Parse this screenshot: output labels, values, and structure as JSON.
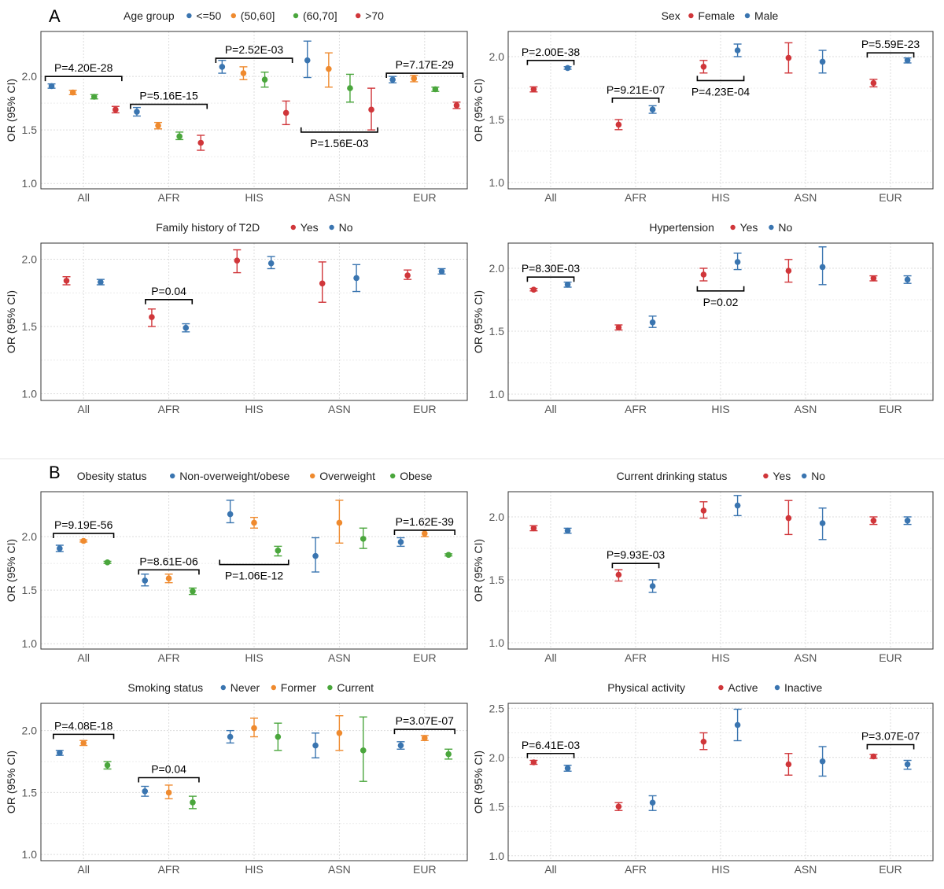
{
  "labels": {
    "A": "A",
    "B": "B"
  },
  "colors": {
    "blue": "#3a75b0",
    "orange": "#ef8a2e",
    "green": "#4aa63c",
    "red": "#d0363a"
  },
  "chart_data": [
    {
      "id": "age",
      "type": "scatter",
      "title": "Age group",
      "ylabel": "OR (95% CI)",
      "categories": [
        "All",
        "AFR",
        "HIS",
        "ASN",
        "EUR"
      ],
      "ylim": [
        0.95,
        2.42
      ],
      "yticks": [
        1.0,
        1.5,
        2.0
      ],
      "series": [
        {
          "name": "<=50",
          "color": "#3a75b0",
          "values": [
            [
              1.91,
              1.89,
              1.93
            ],
            [
              1.67,
              1.63,
              1.71
            ],
            [
              2.09,
              2.03,
              2.15
            ],
            [
              2.15,
              1.99,
              2.33
            ],
            [
              1.97,
              1.94,
              2.0
            ]
          ]
        },
        {
          "name": "(50,60]",
          "color": "#ef8a2e",
          "values": [
            [
              1.85,
              1.83,
              1.87
            ],
            [
              1.54,
              1.51,
              1.57
            ],
            [
              2.03,
              1.97,
              2.09
            ],
            [
              2.07,
              1.9,
              2.22
            ],
            [
              1.98,
              1.95,
              2.01
            ]
          ]
        },
        {
          "name": "(60,70]",
          "color": "#4aa63c",
          "values": [
            [
              1.81,
              1.79,
              1.83
            ],
            [
              1.44,
              1.41,
              1.48
            ],
            [
              1.97,
              1.9,
              2.04
            ],
            [
              1.89,
              1.76,
              2.02
            ],
            [
              1.88,
              1.86,
              1.9
            ]
          ]
        },
        {
          "name": ">70",
          "color": "#d0363a",
          "values": [
            [
              1.69,
              1.66,
              1.72
            ],
            [
              1.38,
              1.31,
              1.45
            ],
            [
              1.66,
              1.55,
              1.77
            ],
            [
              1.69,
              1.5,
              1.89
            ],
            [
              1.73,
              1.7,
              1.76
            ]
          ]
        }
      ],
      "brackets": [
        {
          "cat": 0,
          "span": [
            -0.375,
            0.375
          ],
          "y": 2.0,
          "dir": "down",
          "label": "P=4.20E-28"
        },
        {
          "cat": 1,
          "span": [
            -0.375,
            0.375
          ],
          "y": 1.74,
          "dir": "down",
          "label": "P=5.16E-15"
        },
        {
          "cat": 2,
          "span": [
            -0.375,
            0.375
          ],
          "y": 2.17,
          "dir": "down",
          "label": "P=2.52E-03"
        },
        {
          "cat": 3,
          "span": [
            -0.375,
            0.375
          ],
          "y": 1.48,
          "dir": "up",
          "label": "P=1.56E-03"
        },
        {
          "cat": 4,
          "span": [
            -0.375,
            0.375
          ],
          "y": 2.03,
          "dir": "down",
          "label": "P=7.17E-29"
        }
      ]
    },
    {
      "id": "sex",
      "type": "scatter",
      "title": "Sex",
      "ylabel": "OR (95% CI)",
      "categories": [
        "All",
        "AFR",
        "HIS",
        "ASN",
        "EUR"
      ],
      "ylim": [
        0.95,
        2.2
      ],
      "yticks": [
        1.0,
        1.5,
        2.0
      ],
      "series": [
        {
          "name": "Female",
          "color": "#d0363a",
          "values": [
            [
              1.74,
              1.72,
              1.76
            ],
            [
              1.46,
              1.42,
              1.5
            ],
            [
              1.92,
              1.87,
              1.97
            ],
            [
              1.99,
              1.87,
              2.11
            ],
            [
              1.79,
              1.76,
              1.82
            ]
          ]
        },
        {
          "name": "Male",
          "color": "#3a75b0",
          "values": [
            [
              1.91,
              1.9,
              1.92
            ],
            [
              1.58,
              1.55,
              1.61
            ],
            [
              2.05,
              2.0,
              2.1
            ],
            [
              1.96,
              1.87,
              2.05
            ],
            [
              1.97,
              1.95,
              1.99
            ]
          ]
        }
      ],
      "brackets": [
        {
          "cat": 0,
          "span": [
            -0.2,
            0.2
          ],
          "y": 1.97,
          "dir": "down",
          "label": "P=2.00E-38"
        },
        {
          "cat": 1,
          "span": [
            -0.2,
            0.2
          ],
          "y": 1.67,
          "dir": "down",
          "label": "P=9.21E-07"
        },
        {
          "cat": 2,
          "span": [
            -0.2,
            0.2
          ],
          "y": 1.81,
          "dir": "up",
          "label": "P=4.23E-04"
        },
        {
          "cat": 4,
          "span": [
            -0.2,
            0.2
          ],
          "y": 2.03,
          "dir": "down",
          "label": "P=5.59E-23"
        }
      ]
    },
    {
      "id": "famhist",
      "type": "scatter",
      "title": "Family history of T2D",
      "ylabel": "OR (95% CI)",
      "categories": [
        "All",
        "AFR",
        "HIS",
        "ASN",
        "EUR"
      ],
      "ylim": [
        0.95,
        2.12
      ],
      "yticks": [
        1.0,
        1.5,
        2.0
      ],
      "series": [
        {
          "name": "Yes",
          "color": "#d0363a",
          "values": [
            [
              1.84,
              1.81,
              1.87
            ],
            [
              1.57,
              1.5,
              1.63
            ],
            [
              1.99,
              1.9,
              2.07
            ],
            [
              1.82,
              1.68,
              1.98
            ],
            [
              1.88,
              1.85,
              1.92
            ]
          ]
        },
        {
          "name": "No",
          "color": "#3a75b0",
          "values": [
            [
              1.83,
              1.81,
              1.85
            ],
            [
              1.49,
              1.46,
              1.52
            ],
            [
              1.97,
              1.93,
              2.02
            ],
            [
              1.86,
              1.76,
              1.96
            ],
            [
              1.91,
              1.89,
              1.93
            ]
          ]
        }
      ],
      "brackets": [
        {
          "cat": 1,
          "span": [
            -0.2,
            0.2
          ],
          "y": 1.7,
          "dir": "down",
          "label": "P=0.04"
        }
      ]
    },
    {
      "id": "htn",
      "type": "scatter",
      "title": "Hypertension",
      "ylabel": "OR (95% CI)",
      "categories": [
        "All",
        "AFR",
        "HIS",
        "ASN",
        "EUR"
      ],
      "ylim": [
        0.95,
        2.2
      ],
      "yticks": [
        1.0,
        1.5,
        2.0
      ],
      "series": [
        {
          "name": "Yes",
          "color": "#d0363a",
          "values": [
            [
              1.83,
              1.82,
              1.84
            ],
            [
              1.53,
              1.51,
              1.55
            ],
            [
              1.95,
              1.9,
              2.0
            ],
            [
              1.98,
              1.89,
              2.07
            ],
            [
              1.92,
              1.9,
              1.94
            ]
          ]
        },
        {
          "name": "No",
          "color": "#3a75b0",
          "values": [
            [
              1.87,
              1.85,
              1.89
            ],
            [
              1.57,
              1.53,
              1.62
            ],
            [
              2.05,
              1.99,
              2.12
            ],
            [
              2.01,
              1.87,
              2.17
            ],
            [
              1.91,
              1.88,
              1.94
            ]
          ]
        }
      ],
      "brackets": [
        {
          "cat": 0,
          "span": [
            -0.2,
            0.2
          ],
          "y": 1.93,
          "dir": "down",
          "label": "P=8.30E-03"
        },
        {
          "cat": 2,
          "span": [
            -0.2,
            0.2
          ],
          "y": 1.82,
          "dir": "up",
          "label": "P=0.02"
        }
      ]
    },
    {
      "id": "obesity",
      "type": "scatter",
      "title": "Obesity status",
      "ylabel": "OR (95% CI)",
      "categories": [
        "All",
        "AFR",
        "HIS",
        "ASN",
        "EUR"
      ],
      "ylim": [
        0.95,
        2.42
      ],
      "yticks": [
        1.0,
        1.5,
        2.0
      ],
      "series": [
        {
          "name": "Non-overweight/obese",
          "color": "#3a75b0",
          "values": [
            [
              1.89,
              1.86,
              1.92
            ],
            [
              1.59,
              1.54,
              1.65
            ],
            [
              2.21,
              2.13,
              2.34
            ],
            [
              1.82,
              1.67,
              1.99
            ],
            [
              1.95,
              1.91,
              1.99
            ]
          ]
        },
        {
          "name": "Overweight",
          "color": "#ef8a2e",
          "values": [
            [
              1.96,
              1.95,
              1.97
            ],
            [
              1.61,
              1.57,
              1.65
            ],
            [
              2.13,
              2.08,
              2.18
            ],
            [
              2.13,
              1.94,
              2.34
            ],
            [
              2.03,
              2.0,
              2.06
            ]
          ]
        },
        {
          "name": "Obese",
          "color": "#4aa63c",
          "values": [
            [
              1.76,
              1.75,
              1.77
            ],
            [
              1.49,
              1.46,
              1.52
            ],
            [
              1.87,
              1.82,
              1.91
            ],
            [
              1.98,
              1.89,
              2.08
            ],
            [
              1.83,
              1.82,
              1.84
            ]
          ]
        }
      ],
      "brackets": [
        {
          "cat": 0,
          "span": [
            -0.28,
            0.28
          ],
          "y": 2.03,
          "dir": "down",
          "label": "P=9.19E-56"
        },
        {
          "cat": 1,
          "span": [
            -0.28,
            0.28
          ],
          "y": 1.69,
          "dir": "down",
          "label": "P=8.61E-06"
        },
        {
          "cat": 2,
          "span": [
            -0.33,
            0.33
          ],
          "y": 1.74,
          "dir": "up",
          "label": "P=1.06E-12"
        },
        {
          "cat": 4,
          "span": [
            -0.28,
            0.28
          ],
          "y": 2.06,
          "dir": "down",
          "label": "P=1.62E-39"
        }
      ]
    },
    {
      "id": "drinking",
      "type": "scatter",
      "title": "Current drinking status",
      "ylabel": "OR (95% CI)",
      "categories": [
        "All",
        "AFR",
        "HIS",
        "ASN",
        "EUR"
      ],
      "ylim": [
        0.95,
        2.2
      ],
      "yticks": [
        1.0,
        1.5,
        2.0
      ],
      "series": [
        {
          "name": "Yes",
          "color": "#d0363a",
          "values": [
            [
              1.91,
              1.89,
              1.93
            ],
            [
              1.54,
              1.49,
              1.58
            ],
            [
              2.05,
              1.99,
              2.12
            ],
            [
              1.99,
              1.86,
              2.13
            ],
            [
              1.97,
              1.94,
              2.0
            ]
          ]
        },
        {
          "name": "No",
          "color": "#3a75b0",
          "values": [
            [
              1.89,
              1.87,
              1.91
            ],
            [
              1.45,
              1.4,
              1.5
            ],
            [
              2.09,
              2.01,
              2.17
            ],
            [
              1.95,
              1.82,
              2.07
            ],
            [
              1.97,
              1.94,
              2.0
            ]
          ]
        }
      ],
      "brackets": [
        {
          "cat": 1,
          "span": [
            -0.2,
            0.2
          ],
          "y": 1.63,
          "dir": "down",
          "label": "P=9.93E-03"
        }
      ]
    },
    {
      "id": "smoking",
      "type": "scatter",
      "title": "Smoking status",
      "ylabel": "OR (95% CI)",
      "categories": [
        "All",
        "AFR",
        "HIS",
        "ASN",
        "EUR"
      ],
      "ylim": [
        0.95,
        2.22
      ],
      "yticks": [
        1.0,
        1.5,
        2.0
      ],
      "series": [
        {
          "name": "Never",
          "color": "#3a75b0",
          "values": [
            [
              1.82,
              1.8,
              1.84
            ],
            [
              1.51,
              1.47,
              1.55
            ],
            [
              1.95,
              1.9,
              2.0
            ],
            [
              1.88,
              1.78,
              1.98
            ],
            [
              1.88,
              1.85,
              1.91
            ]
          ]
        },
        {
          "name": "Former",
          "color": "#ef8a2e",
          "values": [
            [
              1.9,
              1.88,
              1.92
            ],
            [
              1.5,
              1.45,
              1.56
            ],
            [
              2.02,
              1.95,
              2.1
            ],
            [
              1.98,
              1.84,
              2.12
            ],
            [
              1.94,
              1.92,
              1.96
            ]
          ]
        },
        {
          "name": "Current",
          "color": "#4aa63c",
          "values": [
            [
              1.72,
              1.69,
              1.75
            ],
            [
              1.42,
              1.37,
              1.47
            ],
            [
              1.95,
              1.84,
              2.06
            ],
            [
              1.84,
              1.59,
              2.11
            ],
            [
              1.81,
              1.77,
              1.85
            ]
          ]
        }
      ],
      "brackets": [
        {
          "cat": 0,
          "span": [
            -0.28,
            0.28
          ],
          "y": 1.97,
          "dir": "down",
          "label": "P=4.08E-18"
        },
        {
          "cat": 1,
          "span": [
            -0.28,
            0.28
          ],
          "y": 1.62,
          "dir": "down",
          "label": "P=0.04"
        },
        {
          "cat": 4,
          "span": [
            -0.28,
            0.28
          ],
          "y": 2.01,
          "dir": "down",
          "label": "P=3.07E-07"
        }
      ]
    },
    {
      "id": "activity",
      "type": "scatter",
      "title": "Physical activity",
      "ylabel": "OR (95% CI)",
      "categories": [
        "All",
        "AFR",
        "HIS",
        "ASN",
        "EUR"
      ],
      "ylim": [
        0.95,
        2.55
      ],
      "yticks": [
        1.0,
        1.5,
        2.0,
        2.5
      ],
      "series": [
        {
          "name": "Active",
          "color": "#d0363a",
          "values": [
            [
              1.95,
              1.93,
              1.97
            ],
            [
              1.5,
              1.46,
              1.54
            ],
            [
              2.16,
              2.08,
              2.25
            ],
            [
              1.93,
              1.82,
              2.04
            ],
            [
              2.01,
              1.99,
              2.03
            ]
          ]
        },
        {
          "name": "Inactive",
          "color": "#3a75b0",
          "values": [
            [
              1.89,
              1.86,
              1.92
            ],
            [
              1.54,
              1.46,
              1.61
            ],
            [
              2.33,
              2.17,
              2.49
            ],
            [
              1.96,
              1.81,
              2.11
            ],
            [
              1.93,
              1.88,
              1.97
            ]
          ]
        }
      ],
      "brackets": [
        {
          "cat": 0,
          "span": [
            -0.2,
            0.2
          ],
          "y": 2.04,
          "dir": "down",
          "label": "P=6.41E-03"
        },
        {
          "cat": 4,
          "span": [
            -0.2,
            0.2
          ],
          "y": 2.13,
          "dir": "down",
          "label": "P=3.07E-07"
        }
      ]
    }
  ]
}
